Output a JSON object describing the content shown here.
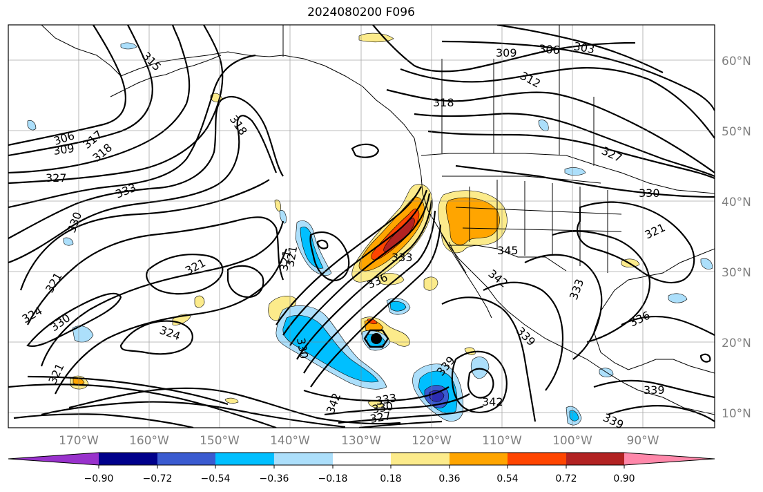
{
  "title": "2024080200 F096",
  "map": {
    "projection": "cylindrical",
    "lon_range": [
      -180,
      -80
    ],
    "lat_range": [
      7,
      65
    ],
    "grid": true,
    "lat_labels": [
      "10°N",
      "20°N",
      "30°N",
      "40°N",
      "50°N",
      "60°N"
    ],
    "lon_labels": [
      "170°W",
      "160°W",
      "150°W",
      "140°W",
      "130°W",
      "120°W",
      "110°W",
      "100°W",
      "90°W"
    ],
    "contour_labels": [
      "315",
      "309",
      "306",
      "303",
      "312",
      "318",
      "306",
      "309",
      "317",
      "318",
      "327",
      "333",
      "330",
      "318",
      "321",
      "321",
      "321",
      "324",
      "330",
      "321",
      "324",
      "321",
      "330",
      "336",
      "342",
      "345",
      "342",
      "333",
      "327",
      "330",
      "333",
      "330",
      "336",
      "339",
      "339",
      "342",
      "333",
      "327",
      "321",
      "339",
      "339"
    ],
    "shading_palette": {
      "neg_strong": "#2d2db4",
      "neg_mid": "#3a5bd0",
      "neg": "#00bfff",
      "neg_weak": "#acdffb",
      "pos_weak": "#fceb8b",
      "pos": "#ffa500",
      "pos_mid": "#ff4500",
      "pos_strong": "#b22222"
    },
    "marker": "storm-center"
  },
  "colorbar": {
    "ticks": [
      "−0.90",
      "−0.72",
      "−0.54",
      "−0.36",
      "−0.18",
      "0.18",
      "0.36",
      "0.54",
      "0.72",
      "0.90"
    ],
    "colors": [
      "#9932cc",
      "#00008b",
      "#3a5bd0",
      "#00bfff",
      "#acdffb",
      "#ffffff",
      "#fceb8b",
      "#ffa500",
      "#ff4500",
      "#b22222",
      "#ff88aa"
    ]
  }
}
